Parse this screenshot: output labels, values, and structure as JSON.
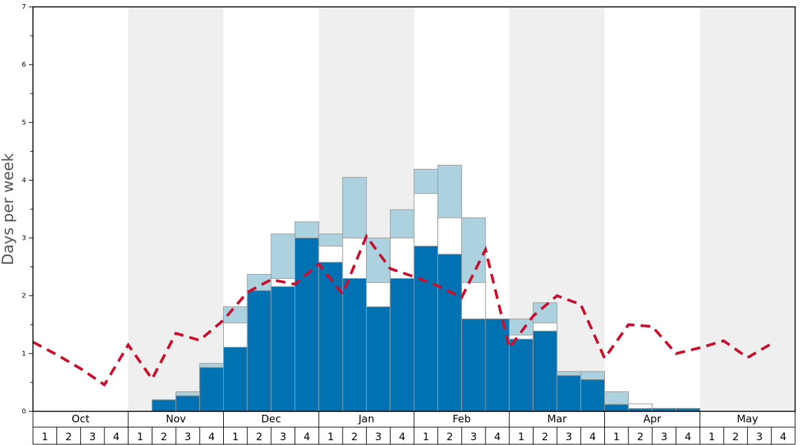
{
  "chart_data": {
    "type": "bar",
    "ylabel": "Days per week",
    "ylim": [
      0,
      7
    ],
    "y_ticks": [
      "0",
      "1",
      "2",
      "3",
      "4",
      "5",
      "6",
      "7"
    ],
    "months": [
      "Oct",
      "Nov",
      "Dec",
      "Jan",
      "Feb",
      "Mar",
      "Apr",
      "May"
    ],
    "weeks": [
      "1",
      "2",
      "3",
      "4"
    ],
    "shading": "alternate months shaded grey",
    "colors": {
      "base": "#0072b2",
      "middle": "#ffffff",
      "top": "#add2df",
      "line": "#c8102e",
      "shade": "#efefef"
    },
    "series": [
      {
        "values": [
          0,
          0,
          0,
          0,
          0,
          0.2,
          0.27,
          0.76,
          1.11,
          2.09,
          2.16,
          3.0,
          2.58,
          2.3,
          1.81,
          2.3,
          2.86,
          2.72,
          1.6,
          1.6,
          1.25,
          1.39,
          0.62,
          0.55,
          0.12,
          0.05,
          0.05,
          0.05,
          0,
          0,
          0,
          0
        ]
      },
      {
        "values": [
          0,
          0,
          0,
          0,
          0,
          0.2,
          0.27,
          0.76,
          1.53,
          2.09,
          2.3,
          3.0,
          2.86,
          3.0,
          2.23,
          3.0,
          3.77,
          3.35,
          2.23,
          1.6,
          1.32,
          1.53,
          0.62,
          0.55,
          0.12,
          0.13,
          0.05,
          0.05,
          0,
          0,
          0,
          0
        ]
      },
      {
        "values": [
          0,
          0,
          0,
          0,
          0,
          0.2,
          0.34,
          0.83,
          1.81,
          2.37,
          3.07,
          3.28,
          3.07,
          4.05,
          3.0,
          3.49,
          4.19,
          4.26,
          3.35,
          1.6,
          1.6,
          1.88,
          0.69,
          0.69,
          0.34,
          0.13,
          0.05,
          0.05,
          0,
          0,
          0,
          0
        ]
      },
      {
        "values": [
          1.2,
          0.98,
          0.74,
          0.46,
          1.15,
          0.56,
          1.35,
          1.23,
          1.58,
          2.06,
          2.28,
          2.2,
          2.55,
          2.03,
          3.03,
          2.47,
          2.33,
          2.17,
          1.97,
          2.8,
          1.1,
          1.65,
          2.0,
          1.85,
          0.92,
          1.5,
          1.47,
          1.0,
          1.1,
          1.22,
          0.93,
          1.17
        ]
      }
    ]
  }
}
